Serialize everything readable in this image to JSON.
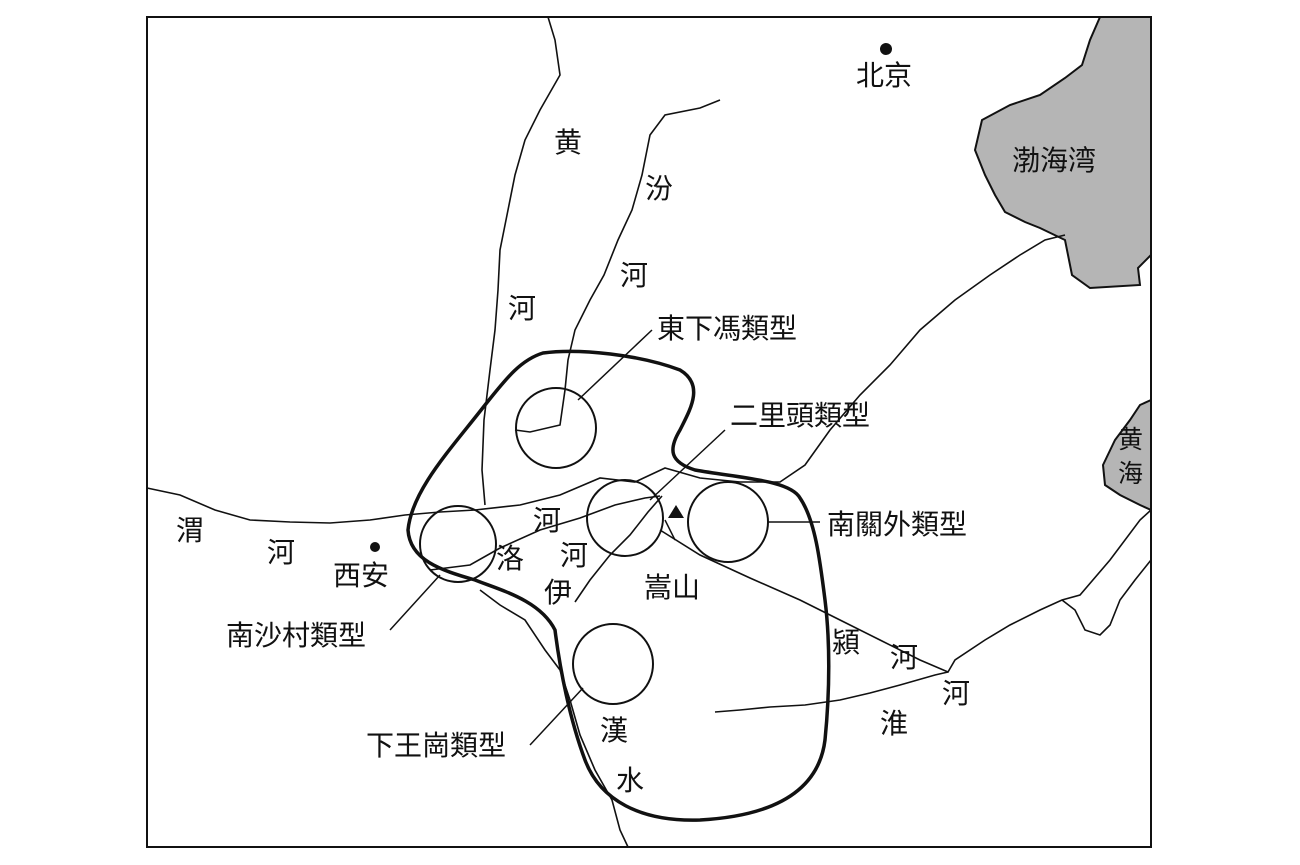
{
  "colors": {
    "ink": "#111111",
    "sea": "#b5b5b5",
    "background": "#ffffff"
  },
  "cities": {
    "beijing": "北京",
    "xian": "西安"
  },
  "seas": {
    "bohai": "渤海湾",
    "huanghai_1": "黄",
    "huanghai_2": "海"
  },
  "rivers": {
    "huanghe_1": "黄",
    "huanghe_2": "河",
    "fenhe_1": "汾",
    "fenhe_2": "河",
    "weihe_1": "渭",
    "weihe_2": "河",
    "luohe_1": "洛",
    "luohe_2": "河",
    "yihe_1": "伊",
    "yihe_2": "河",
    "yinghe_1": "潁",
    "yinghe_2": "河",
    "huaihe_1": "淮",
    "huaihe_2": "河",
    "hanshui_1": "漢",
    "hanshui_2": "水"
  },
  "mountains": {
    "songshan": "嵩山"
  },
  "culture_types": {
    "dongxiafeng": "東下馮類型",
    "erlitou": "二里頭類型",
    "nanguanwai": "南關外類型",
    "nanshacun": "南沙村類型",
    "xiawanggang": "下王崗類型"
  }
}
